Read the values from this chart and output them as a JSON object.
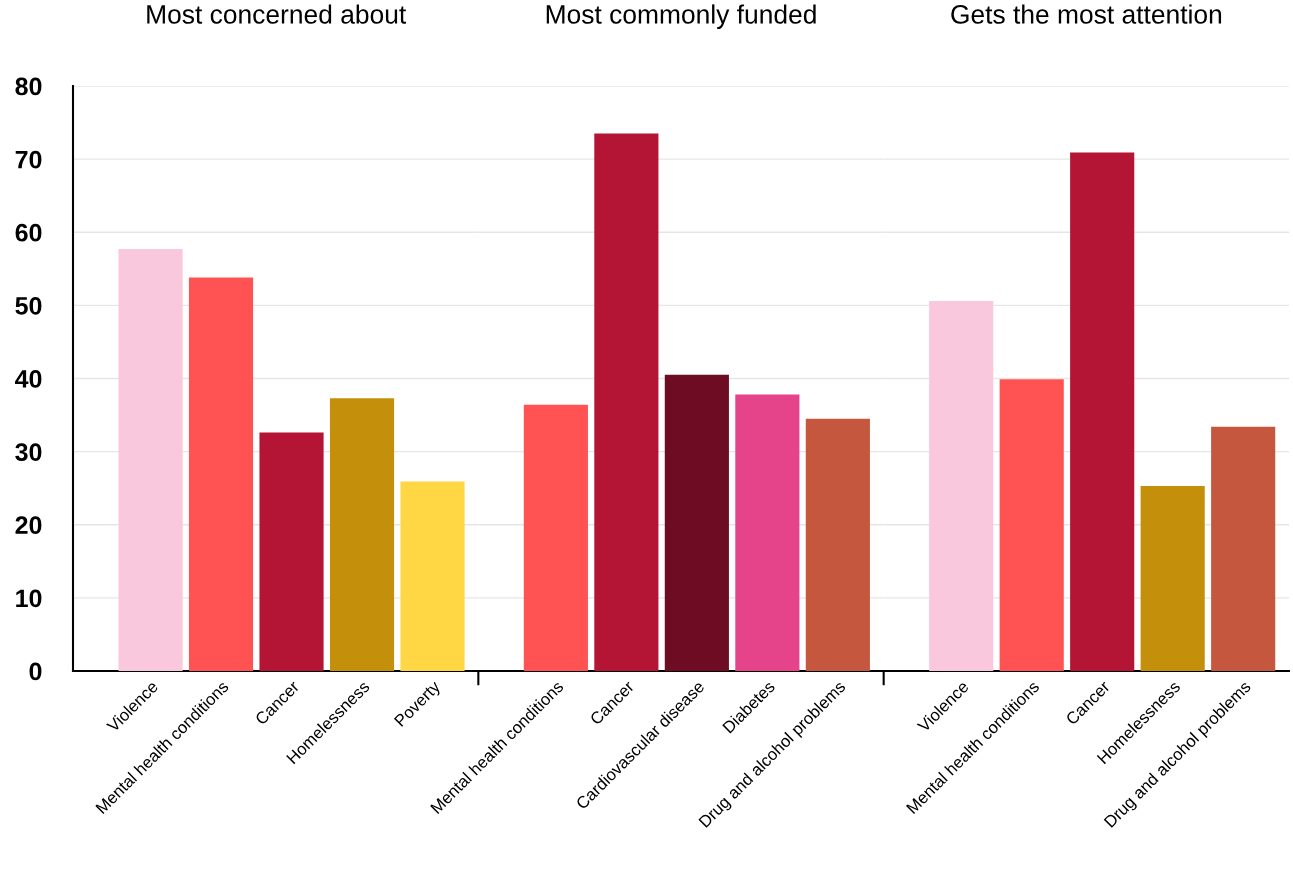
{
  "chart_data": [
    {
      "type": "bar",
      "title": "Most concerned about",
      "categories": [
        "Violence",
        "Mental health conditions",
        "Cancer",
        "Homelessness",
        "Poverty"
      ],
      "values": [
        57.7,
        53.8,
        32.6,
        37.3,
        25.9
      ],
      "colors": [
        "#f9c8dd",
        "#ff5252",
        "#b51535",
        "#c4900c",
        "#ffd644"
      ],
      "ylim": [
        0,
        80
      ],
      "yticks": [
        0,
        10,
        20,
        30,
        40,
        50,
        60,
        70,
        80
      ],
      "grid": "y"
    },
    {
      "type": "bar",
      "title": "Most commonly funded",
      "categories": [
        "Mental health conditions",
        "Cancer",
        "Cardiovascular disease",
        "Diabetes",
        "Drug and alcohol problems"
      ],
      "values": [
        36.4,
        73.5,
        40.5,
        37.8,
        34.5
      ],
      "colors": [
        "#ff5252",
        "#b51535",
        "#6d0c22",
        "#e6448a",
        "#c4573e"
      ],
      "ylim": [
        0,
        80
      ],
      "yticks": [
        0,
        10,
        20,
        30,
        40,
        50,
        60,
        70,
        80
      ],
      "grid": "y",
      "tick_labels": "x"
    },
    {
      "type": "bar",
      "title": "Gets the most attention",
      "categories": [
        "Violence",
        "Mental health conditions",
        "Cancer",
        "Homelessness",
        "Drug and alcohol problems"
      ],
      "values": [
        50.6,
        39.9,
        70.9,
        25.3,
        33.4
      ],
      "colors": [
        "#f9c8dd",
        "#ff5252",
        "#b51535",
        "#c4900c",
        "#c4573e"
      ],
      "ylim": [
        0,
        80
      ],
      "yticks": [
        0,
        10,
        20,
        30,
        40,
        50,
        60,
        70,
        80
      ],
      "grid": "y",
      "tick_labels": "x"
    }
  ]
}
